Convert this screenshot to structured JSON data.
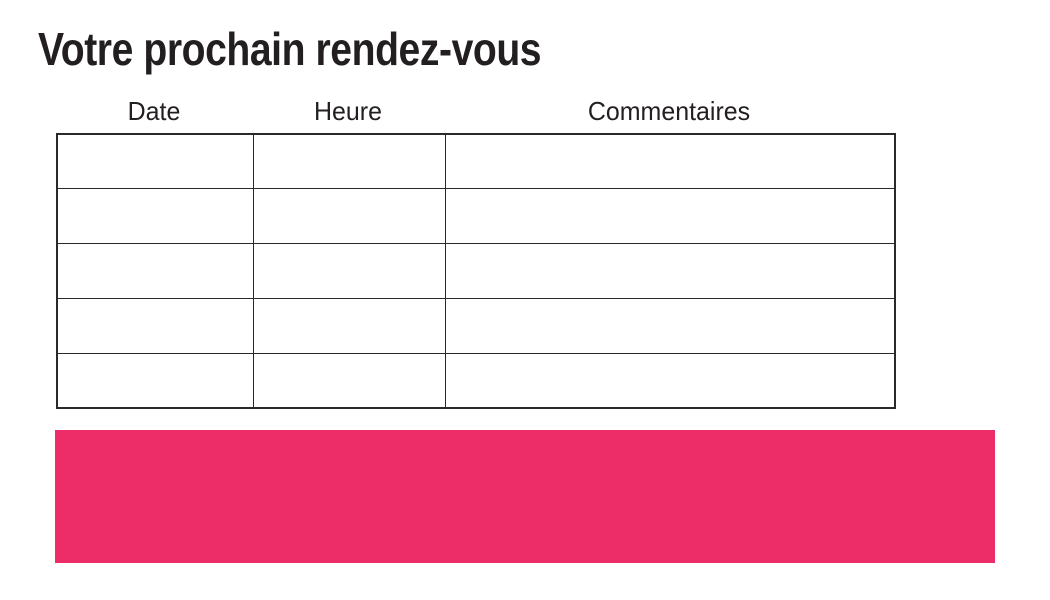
{
  "page": {
    "title": "Votre prochain rendez-vous",
    "background_color": "#ffffff",
    "text_color": "#231f20",
    "table_border_color": "#2a2a2a",
    "accent_color": "#ed2d68"
  },
  "table": {
    "headers": [
      "Date",
      "Heure",
      "Commentaires"
    ],
    "rows": [
      [
        "",
        "",
        ""
      ],
      [
        "",
        "",
        ""
      ],
      [
        "",
        "",
        ""
      ],
      [
        "",
        "",
        ""
      ],
      [
        "",
        "",
        ""
      ]
    ]
  }
}
